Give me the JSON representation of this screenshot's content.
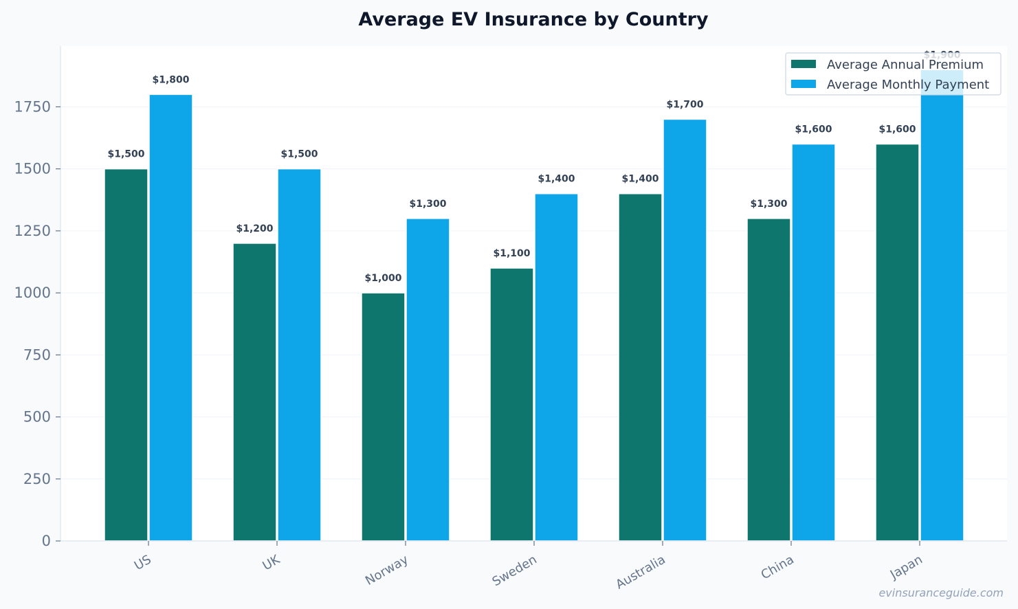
{
  "chart_data": {
    "type": "bar",
    "title": "Average EV Insurance by Country",
    "xlabel": "",
    "ylabel": "",
    "categories": [
      "US",
      "UK",
      "Norway",
      "Sweden",
      "Australia",
      "China",
      "Japan"
    ],
    "series": [
      {
        "name": "Average Annual Premium",
        "color": "#0f766e",
        "values": [
          1500,
          1200,
          1000,
          1100,
          1400,
          1300,
          1600
        ],
        "labels": [
          "$1,500",
          "$1,200",
          "$1,000",
          "$1,100",
          "$1,400",
          "$1,300",
          "$1,600"
        ]
      },
      {
        "name": "Average Monthly Payment",
        "color": "#0ea5e9",
        "values": [
          1800,
          1500,
          1300,
          1400,
          1700,
          1600,
          1900
        ],
        "labels": [
          "$1,800",
          "$1,500",
          "$1,300",
          "$1,400",
          "$1,700",
          "$1,600",
          "$1,900"
        ]
      }
    ],
    "ylim": [
      0,
      2000
    ],
    "yticks": [
      0,
      250,
      500,
      750,
      1000,
      1250,
      1500,
      1750
    ],
    "ytick_labels": [
      "0",
      "250",
      "500",
      "750",
      "1000",
      "1250",
      "1500",
      "1750"
    ],
    "grid": true,
    "legend_position": "top-right"
  },
  "watermark": "evinsuranceguide.com"
}
